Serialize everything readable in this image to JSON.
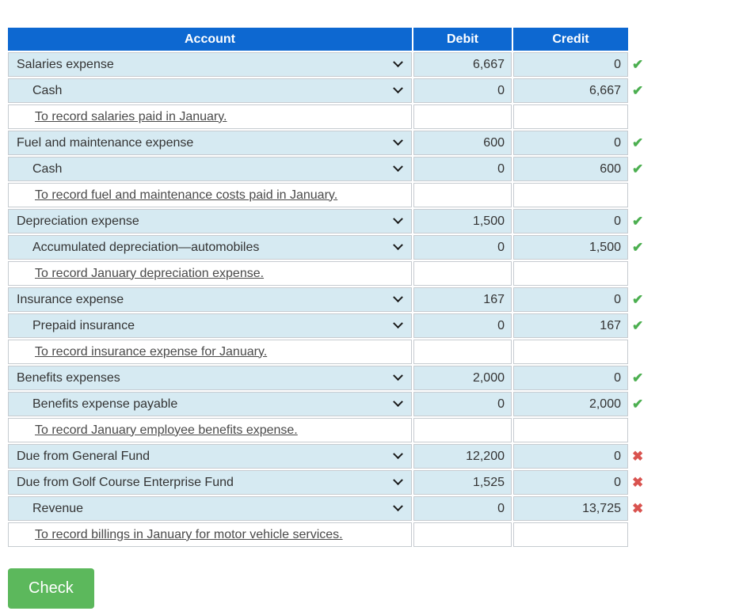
{
  "table": {
    "headers": {
      "account": "Account",
      "debit": "Debit",
      "credit": "Credit"
    },
    "rows": [
      {
        "type": "entry",
        "label": "Salaries expense",
        "indent": 0,
        "debit": "6,667",
        "credit": "0",
        "mark": "correct"
      },
      {
        "type": "entry",
        "label": "Cash",
        "indent": 1,
        "debit": "0",
        "credit": "6,667",
        "mark": "correct"
      },
      {
        "type": "desc",
        "label": "To record salaries paid in January."
      },
      {
        "type": "entry",
        "label": "Fuel and maintenance expense",
        "indent": 0,
        "debit": "600",
        "credit": "0",
        "mark": "correct"
      },
      {
        "type": "entry",
        "label": "Cash",
        "indent": 1,
        "debit": "0",
        "credit": "600",
        "mark": "correct"
      },
      {
        "type": "desc",
        "label": "To record fuel and maintenance costs paid in January."
      },
      {
        "type": "entry",
        "label": "Depreciation expense",
        "indent": 0,
        "debit": "1,500",
        "credit": "0",
        "mark": "correct"
      },
      {
        "type": "entry",
        "label": "Accumulated depreciation—automobiles",
        "indent": 1,
        "debit": "0",
        "credit": "1,500",
        "mark": "correct"
      },
      {
        "type": "desc",
        "label": "To record January depreciation expense."
      },
      {
        "type": "entry",
        "label": "Insurance expense",
        "indent": 0,
        "debit": "167",
        "credit": "0",
        "mark": "correct"
      },
      {
        "type": "entry",
        "label": "Prepaid insurance",
        "indent": 1,
        "debit": "0",
        "credit": "167",
        "mark": "correct"
      },
      {
        "type": "desc",
        "label": "To record insurance expense for January."
      },
      {
        "type": "entry",
        "label": "Benefits expenses",
        "indent": 0,
        "debit": "2,000",
        "credit": "0",
        "mark": "correct"
      },
      {
        "type": "entry",
        "label": "Benefits expense payable",
        "indent": 1,
        "debit": "0",
        "credit": "2,000",
        "mark": "correct"
      },
      {
        "type": "desc",
        "label": "To record January employee benefits expense."
      },
      {
        "type": "entry",
        "label": "Due from General Fund",
        "indent": 0,
        "debit": "12,200",
        "credit": "0",
        "mark": "incorrect"
      },
      {
        "type": "entry",
        "label": "Due from Golf Course Enterprise Fund",
        "indent": 0,
        "debit": "1,525",
        "credit": "0",
        "mark": "incorrect"
      },
      {
        "type": "entry",
        "label": "Revenue",
        "indent": 1,
        "debit": "0",
        "credit": "13,725",
        "mark": "incorrect"
      },
      {
        "type": "desc",
        "label": "To record billings in January for motor vehicle services."
      }
    ]
  },
  "marks": {
    "correct_glyph": "✔",
    "incorrect_glyph": "✖"
  },
  "check_button": {
    "label": "Check"
  },
  "colors": {
    "header_blue": "#0d68d1",
    "row_blue": "#d6eaf2",
    "correct_green": "#4caf50",
    "incorrect_red": "#d9534f",
    "button_green": "#5cb85c",
    "border_gray": "#c6cbd0"
  }
}
